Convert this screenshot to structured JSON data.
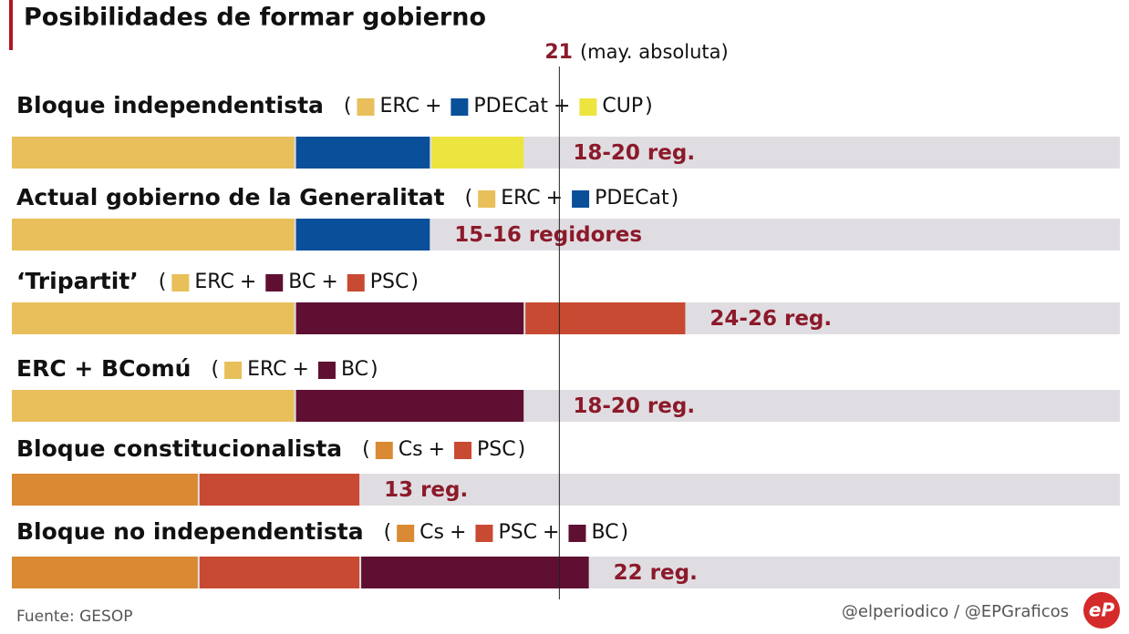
{
  "chart_data": {
    "type": "stacked-bar",
    "title": "Posibilidades de formar gobierno",
    "xlim": [
      0,
      42.5
    ],
    "reference_line": 21,
    "reference_note": "(may. absoluta)",
    "brackets": [
      "(",
      ")"
    ],
    "joiner": "+",
    "colors": {
      "ERC": "#e8bf5a",
      "PDECat": "#0a4f9a",
      "CUP": "#ece43f",
      "BC": "#5f1032",
      "PSC": "#c94a32",
      "Cs": "#d98a32"
    },
    "groups": [
      {
        "name": "Bloque independentista",
        "segments": [
          {
            "party": "ERC",
            "value": 10.9
          },
          {
            "party": "PDECat",
            "value": 5.2
          },
          {
            "party": "CUP",
            "value": 3.6
          }
        ],
        "label": "18-20 reg."
      },
      {
        "name": "Actual gobierno de la Generalitat",
        "segments": [
          {
            "party": "ERC",
            "value": 10.9
          },
          {
            "party": "PDECat",
            "value": 5.2
          }
        ],
        "label": "15-16 regidores"
      },
      {
        "name": "‘Tripartit’",
        "segments": [
          {
            "party": "ERC",
            "value": 10.9
          },
          {
            "party": "BC",
            "value": 8.8
          },
          {
            "party": "PSC",
            "value": 6.2
          }
        ],
        "label": "24-26 reg."
      },
      {
        "name": "ERC + BComú",
        "segments": [
          {
            "party": "ERC",
            "value": 10.9
          },
          {
            "party": "BC",
            "value": 8.8
          }
        ],
        "label": "18-20 reg."
      },
      {
        "name": "Bloque constitucionalista",
        "segments": [
          {
            "party": "Cs",
            "value": 7.2
          },
          {
            "party": "PSC",
            "value": 6.2
          }
        ],
        "label": "13 reg."
      },
      {
        "name": "Bloque no independentista",
        "segments": [
          {
            "party": "Cs",
            "value": 7.2
          },
          {
            "party": "PSC",
            "value": 6.2
          },
          {
            "party": "BC",
            "value": 8.8
          }
        ],
        "label": "22 reg."
      }
    ],
    "source": "Fuente: GESOP",
    "credit": "@elperiodico / @EPGraficos",
    "logo": "eP"
  }
}
